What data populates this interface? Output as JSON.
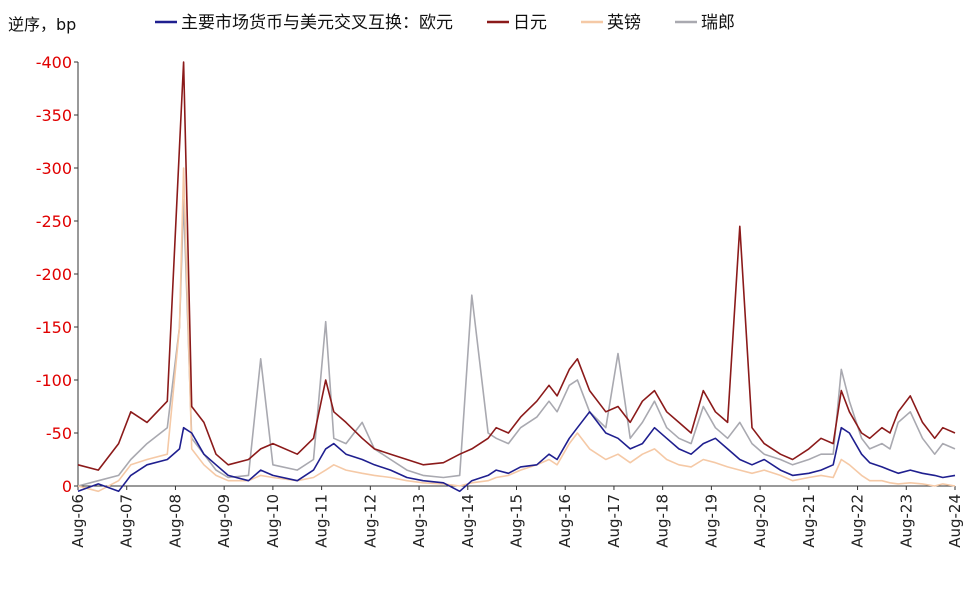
{
  "chart_data": {
    "type": "line",
    "ylabel": "逆序，bp",
    "yticks": [
      "-400",
      "-350",
      "-300",
      "-250",
      "-200",
      "-150",
      "-100",
      "-50",
      "0"
    ],
    "ylim": [
      0,
      -400
    ],
    "y_inverted": true,
    "grid": false,
    "legend_position": "top",
    "xticks": [
      "Aug-06",
      "Aug-07",
      "Aug-08",
      "Aug-09",
      "Aug-10",
      "Aug-11",
      "Aug-12",
      "Aug-13",
      "Aug-14",
      "Aug-15",
      "Aug-16",
      "Aug-17",
      "Aug-18",
      "Aug-19",
      "Aug-20",
      "Aug-21",
      "Aug-22",
      "Aug-23",
      "Aug-24"
    ],
    "x_start": "2006-08",
    "x_end": "2024-08",
    "series": [
      {
        "name": "主要市场货币与美元交叉互换：欧元",
        "color": "#1f1f8f",
        "x": [
          "2006-08",
          "2007-01",
          "2007-06",
          "2007-09",
          "2008-01",
          "2008-06",
          "2008-09",
          "2008-10",
          "2008-12",
          "2009-03",
          "2009-06",
          "2009-09",
          "2010-02",
          "2010-05",
          "2010-08",
          "2011-02",
          "2011-06",
          "2011-09",
          "2011-11",
          "2012-02",
          "2012-06",
          "2012-09",
          "2013-01",
          "2013-05",
          "2013-09",
          "2014-02",
          "2014-06",
          "2014-09",
          "2015-01",
          "2015-03",
          "2015-06",
          "2015-09",
          "2016-01",
          "2016-04",
          "2016-06",
          "2016-09",
          "2016-11",
          "2017-02",
          "2017-06",
          "2017-09",
          "2017-12",
          "2018-03",
          "2018-06",
          "2018-09",
          "2018-12",
          "2019-03",
          "2019-06",
          "2019-09",
          "2019-12",
          "2020-03",
          "2020-06",
          "2020-09",
          "2021-01",
          "2021-04",
          "2021-08",
          "2021-11",
          "2022-02",
          "2022-04",
          "2022-06",
          "2022-09",
          "2022-11",
          "2023-02",
          "2023-04",
          "2023-06",
          "2023-09",
          "2023-12",
          "2024-03",
          "2024-05",
          "2024-08"
        ],
        "y": [
          5,
          -2,
          5,
          -10,
          -20,
          -25,
          -35,
          -55,
          -50,
          -30,
          -20,
          -10,
          -5,
          -15,
          -10,
          -5,
          -15,
          -35,
          -40,
          -30,
          -25,
          -20,
          -15,
          -8,
          -5,
          -3,
          5,
          -5,
          -10,
          -15,
          -12,
          -18,
          -20,
          -30,
          -25,
          -45,
          -55,
          -70,
          -50,
          -45,
          -35,
          -40,
          -55,
          -45,
          -35,
          -30,
          -40,
          -45,
          -35,
          -25,
          -20,
          -25,
          -15,
          -10,
          -12,
          -15,
          -20,
          -55,
          -50,
          -30,
          -22,
          -18,
          -15,
          -12,
          -15,
          -12,
          -10,
          -8,
          -10
        ]
      },
      {
        "name": "日元",
        "color": "#8b1a1a",
        "x": [
          "2006-08",
          "2007-01",
          "2007-06",
          "2007-09",
          "2008-01",
          "2008-06",
          "2008-09",
          "2008-10",
          "2008-12",
          "2009-03",
          "2009-06",
          "2009-09",
          "2010-02",
          "2010-05",
          "2010-08",
          "2011-02",
          "2011-06",
          "2011-09",
          "2011-11",
          "2012-02",
          "2012-06",
          "2012-09",
          "2013-01",
          "2013-05",
          "2013-09",
          "2014-02",
          "2014-06",
          "2014-09",
          "2015-01",
          "2015-03",
          "2015-06",
          "2015-09",
          "2016-01",
          "2016-04",
          "2016-06",
          "2016-09",
          "2016-11",
          "2017-02",
          "2017-06",
          "2017-09",
          "2017-12",
          "2018-03",
          "2018-06",
          "2018-09",
          "2018-12",
          "2019-03",
          "2019-06",
          "2019-09",
          "2019-12",
          "2020-03",
          "2020-06",
          "2020-09",
          "2021-01",
          "2021-04",
          "2021-08",
          "2021-11",
          "2022-02",
          "2022-04",
          "2022-06",
          "2022-09",
          "2022-11",
          "2023-02",
          "2023-04",
          "2023-06",
          "2023-09",
          "2023-12",
          "2024-03",
          "2024-05",
          "2024-08"
        ],
        "y": [
          -20,
          -15,
          -40,
          -70,
          -60,
          -80,
          -320,
          -400,
          -75,
          -60,
          -30,
          -20,
          -25,
          -35,
          -40,
          -30,
          -45,
          -100,
          -70,
          -60,
          -45,
          -35,
          -30,
          -25,
          -20,
          -22,
          -30,
          -35,
          -45,
          -55,
          -50,
          -65,
          -80,
          -95,
          -85,
          -110,
          -120,
          -90,
          -70,
          -75,
          -60,
          -80,
          -90,
          -70,
          -60,
          -50,
          -90,
          -70,
          -60,
          -245,
          -55,
          -40,
          -30,
          -25,
          -35,
          -45,
          -40,
          -90,
          -70,
          -50,
          -45,
          -55,
          -50,
          -70,
          -85,
          -60,
          -45,
          -55,
          -50
        ]
      },
      {
        "name": "英镑",
        "color": "#f5c9a6",
        "x": [
          "2006-08",
          "2007-01",
          "2007-06",
          "2007-09",
          "2008-01",
          "2008-06",
          "2008-09",
          "2008-10",
          "2008-12",
          "2009-03",
          "2009-06",
          "2009-09",
          "2010-02",
          "2010-05",
          "2010-08",
          "2011-02",
          "2011-06",
          "2011-09",
          "2011-11",
          "2012-02",
          "2012-06",
          "2012-09",
          "2013-01",
          "2013-05",
          "2013-09",
          "2014-02",
          "2014-06",
          "2014-09",
          "2015-01",
          "2015-03",
          "2015-06",
          "2015-09",
          "2016-01",
          "2016-04",
          "2016-06",
          "2016-09",
          "2016-11",
          "2017-02",
          "2017-06",
          "2017-09",
          "2017-12",
          "2018-03",
          "2018-06",
          "2018-09",
          "2018-12",
          "2019-03",
          "2019-06",
          "2019-09",
          "2019-12",
          "2020-03",
          "2020-06",
          "2020-09",
          "2021-01",
          "2021-04",
          "2021-08",
          "2021-11",
          "2022-02",
          "2022-04",
          "2022-06",
          "2022-09",
          "2022-11",
          "2023-02",
          "2023-04",
          "2023-06",
          "2023-09",
          "2023-12",
          "2024-03",
          "2024-05",
          "2024-08"
        ],
        "y": [
          0,
          5,
          -5,
          -20,
          -25,
          -30,
          -150,
          -300,
          -35,
          -20,
          -10,
          -5,
          -5,
          -10,
          -8,
          -5,
          -8,
          -15,
          -20,
          -15,
          -12,
          -10,
          -8,
          -5,
          -3,
          -2,
          0,
          -3,
          -5,
          -8,
          -10,
          -15,
          -20,
          -25,
          -20,
          -40,
          -50,
          -35,
          -25,
          -30,
          -22,
          -30,
          -35,
          -25,
          -20,
          -18,
          -25,
          -22,
          -18,
          -15,
          -12,
          -15,
          -10,
          -5,
          -8,
          -10,
          -8,
          -25,
          -20,
          -10,
          -5,
          -5,
          -3,
          -2,
          -3,
          -2,
          0,
          -2,
          0
        ]
      },
      {
        "name": "瑞郎",
        "color": "#a9a9b0",
        "x": [
          "2006-08",
          "2007-01",
          "2007-06",
          "2007-09",
          "2008-01",
          "2008-06",
          "2008-09",
          "2008-10",
          "2008-12",
          "2009-03",
          "2009-06",
          "2009-09",
          "2010-02",
          "2010-05",
          "2010-08",
          "2011-02",
          "2011-06",
          "2011-09",
          "2011-11",
          "2012-02",
          "2012-06",
          "2012-09",
          "2013-01",
          "2013-05",
          "2013-09",
          "2014-02",
          "2014-06",
          "2014-09",
          "2015-01",
          "2015-03",
          "2015-06",
          "2015-09",
          "2016-01",
          "2016-04",
          "2016-06",
          "2016-09",
          "2016-11",
          "2017-02",
          "2017-06",
          "2017-09",
          "2017-12",
          "2018-03",
          "2018-06",
          "2018-09",
          "2018-12",
          "2019-03",
          "2019-06",
          "2019-09",
          "2019-12",
          "2020-03",
          "2020-06",
          "2020-09",
          "2021-01",
          "2021-04",
          "2021-08",
          "2021-11",
          "2022-02",
          "2022-04",
          "2022-06",
          "2022-09",
          "2022-11",
          "2023-02",
          "2023-04",
          "2023-06",
          "2023-09",
          "2023-12",
          "2024-03",
          "2024-05",
          "2024-08"
        ],
        "y": [
          0,
          -5,
          -10,
          -25,
          -40,
          -55,
          -150,
          -270,
          -45,
          -30,
          -15,
          -8,
          -10,
          -120,
          -20,
          -15,
          -25,
          -155,
          -45,
          -40,
          -60,
          -35,
          -25,
          -15,
          -10,
          -8,
          -10,
          -180,
          -50,
          -45,
          -40,
          -55,
          -65,
          -80,
          -70,
          -95,
          -100,
          -70,
          -55,
          -125,
          -45,
          -60,
          -80,
          -55,
          -45,
          -40,
          -75,
          -55,
          -45,
          -60,
          -40,
          -30,
          -25,
          -20,
          -25,
          -30,
          -30,
          -110,
          -80,
          -45,
          -35,
          -40,
          -35,
          -60,
          -70,
          -45,
          -30,
          -40,
          -35
        ]
      }
    ]
  }
}
